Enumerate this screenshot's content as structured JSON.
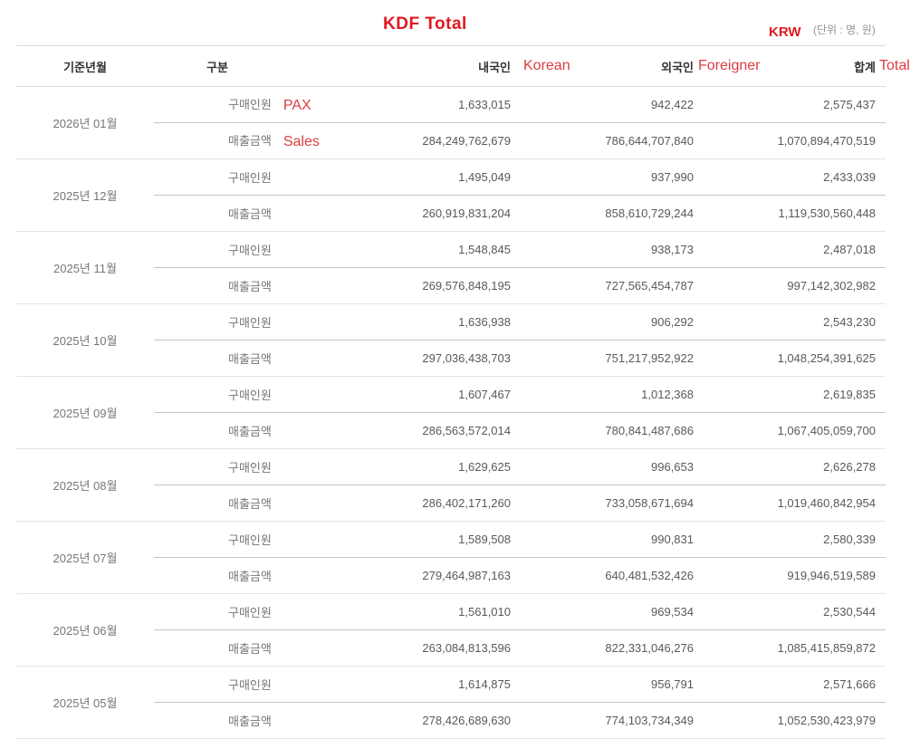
{
  "header": {
    "title": "KDF Total",
    "currency_label": "KRW",
    "unit_label": "(단위 : 명, 원)"
  },
  "colors": {
    "title_red": "#e0191f",
    "annotation_red": "#dc3c40",
    "header_text": "#333333",
    "body_text": "#595959",
    "label_text": "#767676"
  },
  "table": {
    "columns": {
      "month": "기준년월",
      "category": "구분",
      "korean": "내국인",
      "foreigner": "외국인",
      "total": "합계"
    },
    "header_annotations": {
      "korean": "Korean",
      "foreigner": "Foreigner",
      "total": "Total"
    },
    "category_labels": {
      "pax": "구매인원",
      "sales": "매출금액"
    },
    "groups": [
      {
        "month": "2026년 01월",
        "annotations": {
          "pax": "PAX",
          "sales": "Sales"
        },
        "pax": {
          "korean": "1,633,015",
          "foreigner": "942,422",
          "total": "2,575,437"
        },
        "sales": {
          "korean": "284,249,762,679",
          "foreigner": "786,644,707,840",
          "total": "1,070,894,470,519"
        }
      },
      {
        "month": "2025년 12월",
        "pax": {
          "korean": "1,495,049",
          "foreigner": "937,990",
          "total": "2,433,039"
        },
        "sales": {
          "korean": "260,919,831,204",
          "foreigner": "858,610,729,244",
          "total": "1,119,530,560,448"
        }
      },
      {
        "month": "2025년 11월",
        "pax": {
          "korean": "1,548,845",
          "foreigner": "938,173",
          "total": "2,487,018"
        },
        "sales": {
          "korean": "269,576,848,195",
          "foreigner": "727,565,454,787",
          "total": "997,142,302,982"
        }
      },
      {
        "month": "2025년 10월",
        "pax": {
          "korean": "1,636,938",
          "foreigner": "906,292",
          "total": "2,543,230"
        },
        "sales": {
          "korean": "297,036,438,703",
          "foreigner": "751,217,952,922",
          "total": "1,048,254,391,625"
        }
      },
      {
        "month": "2025년 09월",
        "pax": {
          "korean": "1,607,467",
          "foreigner": "1,012,368",
          "total": "2,619,835"
        },
        "sales": {
          "korean": "286,563,572,014",
          "foreigner": "780,841,487,686",
          "total": "1,067,405,059,700"
        }
      },
      {
        "month": "2025년 08월",
        "pax": {
          "korean": "1,629,625",
          "foreigner": "996,653",
          "total": "2,626,278"
        },
        "sales": {
          "korean": "286,402,171,260",
          "foreigner": "733,058,671,694",
          "total": "1,019,460,842,954"
        }
      },
      {
        "month": "2025년 07월",
        "pax": {
          "korean": "1,589,508",
          "foreigner": "990,831",
          "total": "2,580,339"
        },
        "sales": {
          "korean": "279,464,987,163",
          "foreigner": "640,481,532,426",
          "total": "919,946,519,589"
        }
      },
      {
        "month": "2025년 06월",
        "pax": {
          "korean": "1,561,010",
          "foreigner": "969,534",
          "total": "2,530,544"
        },
        "sales": {
          "korean": "263,084,813,596",
          "foreigner": "822,331,046,276",
          "total": "1,085,415,859,872"
        }
      },
      {
        "month": "2025년 05월",
        "pax": {
          "korean": "1,614,875",
          "foreigner": "956,791",
          "total": "2,571,666"
        },
        "sales": {
          "korean": "278,426,689,630",
          "foreigner": "774,103,734,349",
          "total": "1,052,530,423,979"
        }
      }
    ]
  }
}
